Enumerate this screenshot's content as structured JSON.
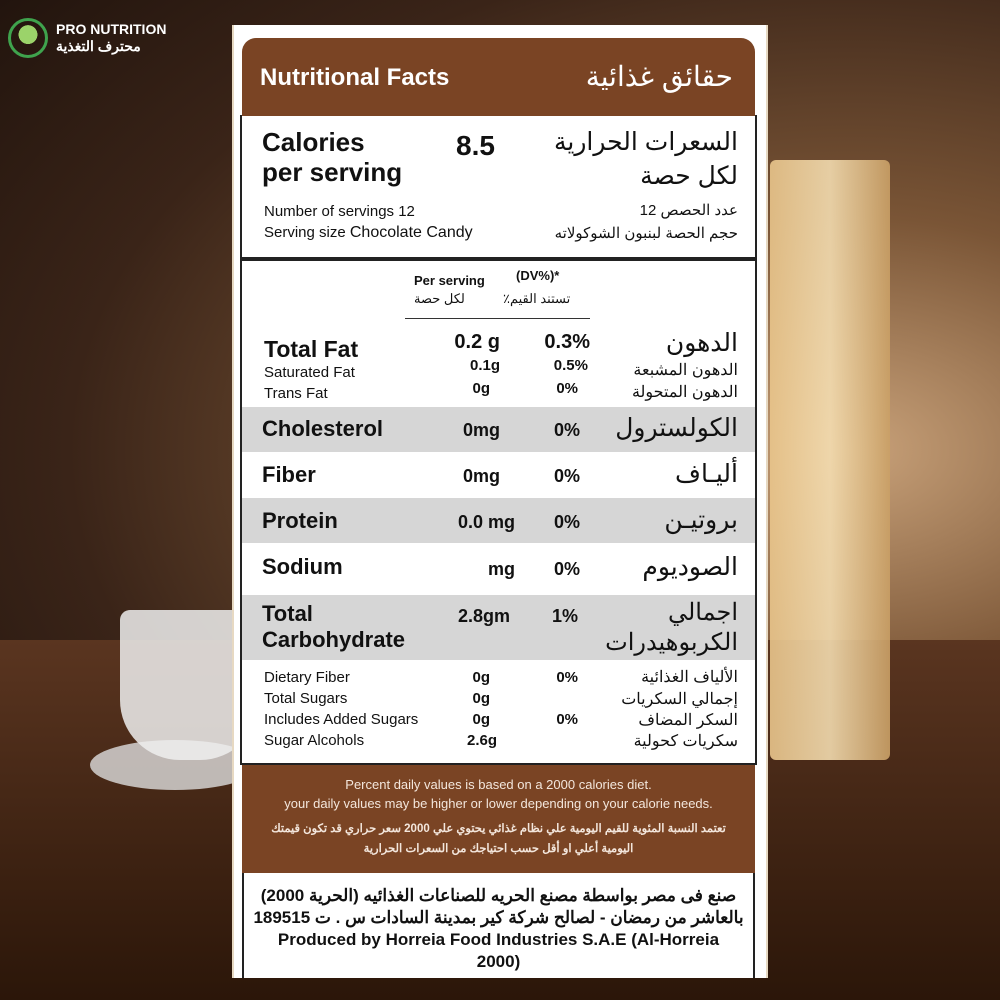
{
  "brand": {
    "name_en": "PRO NUTRITION",
    "name_ar": "محترف التغذية",
    "logo_color": "#3fa34d"
  },
  "header": {
    "title_en": "Nutritional Facts",
    "title_ar": "حقائق غذائية",
    "color": "#7a4424"
  },
  "calories": {
    "label_en_1": "Calories",
    "label_en_2": "per serving",
    "value": "8.5",
    "label_ar_1": "السعرات الحرارية",
    "label_ar_2": "لكل حصة",
    "servings_en": "Number of servings 12",
    "servings_ar": "عدد الحصص 12",
    "size_en_label": "Serving size",
    "size_en_value": "Chocolate Candy",
    "size_ar": "حجم الحصة لبنبون الشوكولاته"
  },
  "columns": {
    "per_serving_en": "Per serving",
    "per_serving_ar": "لكل حصة",
    "dv_en": "(DV%)*",
    "dv_ar": "تستند القيم٪"
  },
  "fat": {
    "label": "Total Fat",
    "value": "0.2 g",
    "dv": "0.3%",
    "ar": "الدهون",
    "sub": [
      {
        "label": "Saturated Fat",
        "value": "0.1g",
        "dv": "0.5%",
        "ar": "الدهون المشبعة"
      },
      {
        "label": "Trans Fat",
        "value": "0g",
        "dv": "0%",
        "ar": "الدهون المتحولة"
      }
    ]
  },
  "rows": [
    {
      "label": "Cholesterol",
      "value": "0mg",
      "dv": "0%",
      "ar": "الكولسترول"
    },
    {
      "label": "Fiber",
      "value": "0mg",
      "dv": "0%",
      "ar": "أليـاف"
    },
    {
      "label": "Protein",
      "value": "0.0 mg",
      "dv": "0%",
      "ar": "بروتيـن"
    },
    {
      "label": "Sodium",
      "value": "mg",
      "dv": "0%",
      "ar": "الصوديوم"
    }
  ],
  "carb": {
    "label_1": "Total",
    "label_2": "Carbohydrate",
    "value": "2.8gm",
    "dv": "1%",
    "ar_1": "اجمالي",
    "ar_2": "الكربوهيدرات",
    "sub": [
      {
        "label": "Dietary Fiber",
        "value": "0g",
        "dv": "0%",
        "ar": "الألياف الغذائية"
      },
      {
        "label": "Total Sugars",
        "value": "0g",
        "dv": "",
        "ar": "إجمالي السكريات"
      },
      {
        "label": "Includes Added Sugars",
        "value": "0g",
        "dv": "0%",
        "ar": "السكر المضاف"
      },
      {
        "label": "Sugar Alcohols",
        "value": "2.6g",
        "dv": "",
        "ar": "سكريات كحولية"
      }
    ]
  },
  "footnote": {
    "en_1": "Percent daily values is based on a 2000 calories diet.",
    "en_2": "your daily values may be higher or lower depending on your calorie needs.",
    "ar_1": "تعتمد النسبة المئوية للقيم اليومية علي نظام غذائي يحتوي علي 2000 سعر حراري قد تكون قيمتك",
    "ar_2": "اليومية أعلي او أقل حسب احتياجك من السعرات الحرارية"
  },
  "producer": {
    "ar_1": "صنع فى مصر بواسطة مصنع الحريه للصناعات الغذائيه (الحرية 2000)",
    "ar_2": "بالعاشر من رمضان - لصالح شركة كير بمدينة السادات س . ت 189515",
    "en": "Produced by Horreia Food Industries S.A.E (Al-Horreia 2000)"
  }
}
